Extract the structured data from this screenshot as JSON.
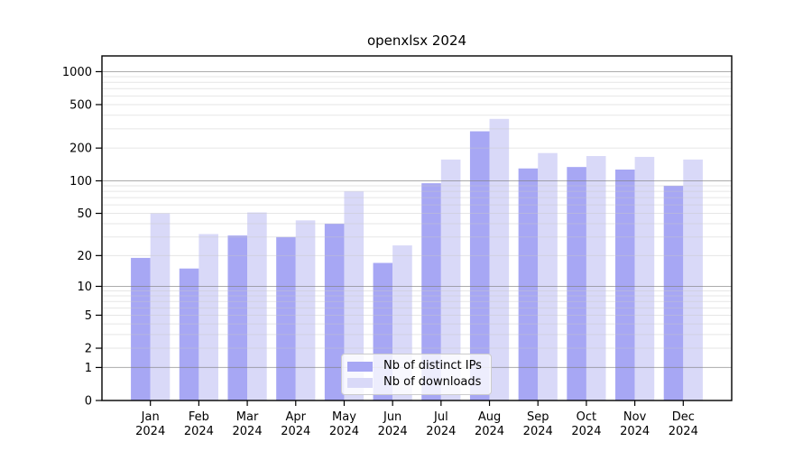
{
  "chart_data": {
    "type": "bar",
    "title": "openxlsx 2024",
    "categories": [
      "Jan",
      "Feb",
      "Mar",
      "Apr",
      "May",
      "Jun",
      "Jul",
      "Aug",
      "Sep",
      "Oct",
      "Nov",
      "Dec"
    ],
    "x_tick_year": "2024",
    "series": [
      {
        "name": "Nb of distinct IPs",
        "key": "distinct-ips",
        "color": "#a7a7f4",
        "values": [
          19,
          15,
          31,
          30,
          40,
          17,
          95,
          285,
          130,
          134,
          127,
          90
        ]
      },
      {
        "name": "Nb of downloads",
        "key": "downloads",
        "color": "#d9d9f8",
        "values": [
          50,
          32,
          51,
          43,
          80,
          25,
          157,
          370,
          180,
          169,
          166,
          157
        ]
      }
    ],
    "y_axis": {
      "scale": "log10(value+1)",
      "tick_values": [
        0,
        1,
        2,
        5,
        10,
        20,
        50,
        100,
        200,
        500,
        1000
      ],
      "major_gridlines": [
        1,
        10,
        100,
        1000
      ],
      "minor_gridlines": [
        2,
        3,
        4,
        5,
        6,
        7,
        8,
        9,
        20,
        30,
        40,
        50,
        60,
        70,
        80,
        90,
        200,
        300,
        400,
        500,
        600,
        700,
        800,
        900
      ],
      "ylim_top_value": 1390
    },
    "legend_position": "lower-center",
    "grid": true
  },
  "colors": {
    "axis": "#000000",
    "major_grid": "#808080",
    "minor_grid": "#c8c8c8",
    "text": "#000000",
    "background": "#ffffff"
  }
}
